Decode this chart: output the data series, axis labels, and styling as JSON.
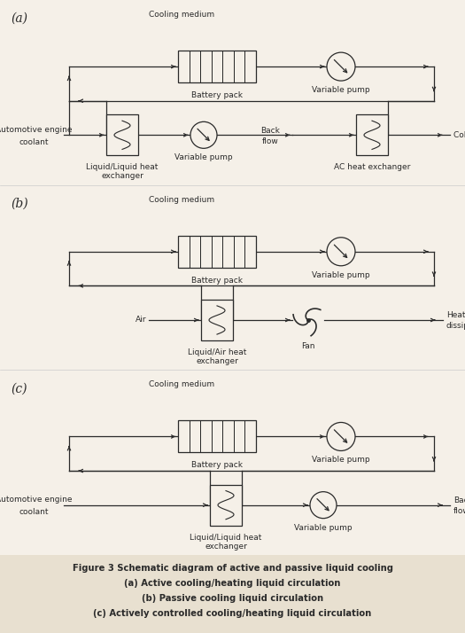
{
  "bg_color": "#f5f0e8",
  "caption_bg": "#e8e0d0",
  "line_color": "#2a2a2a",
  "title_lines": [
    "Figure 3 Schematic diagram of active and passive liquid cooling",
    "(a) Active cooling/heating liquid circulation",
    "(b) Passive cooling liquid circulation",
    "(c) Actively controlled cooling/heating liquid circulation"
  ],
  "section_labels": [
    "(a)",
    "(b)",
    "(c)"
  ],
  "font_size_caption": 7.2,
  "font_size_label": 6.5,
  "font_size_section": 10
}
